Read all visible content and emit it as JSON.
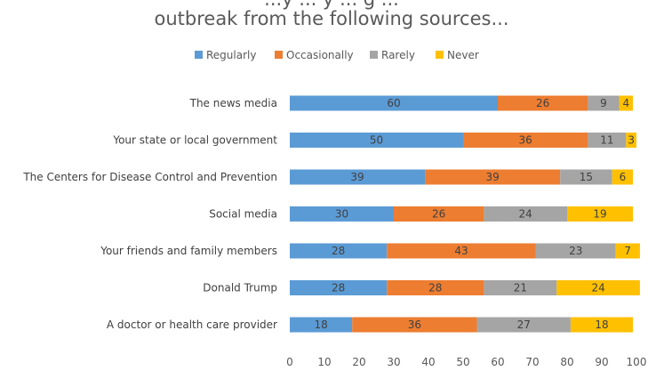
{
  "chart_data": {
    "type": "bar",
    "orientation": "horizontal",
    "stacked": true,
    "title_lines": [
      "...y ... y ... g ...",
      "outbreak from the following sources..."
    ],
    "categories": [
      "The news media",
      "Your state or local government",
      "The Centers for Disease Control and Prevention",
      "Social media",
      "Your friends and family members",
      "Donald Trump",
      "A doctor or health care provider"
    ],
    "series": [
      {
        "name": "Regularly",
        "color": "#5B9BD5",
        "values": [
          60,
          50,
          39,
          30,
          28,
          28,
          18
        ]
      },
      {
        "name": "Occasionally",
        "color": "#ED7D31",
        "values": [
          26,
          36,
          39,
          26,
          43,
          28,
          36
        ]
      },
      {
        "name": "Rarely",
        "color": "#A5A5A5",
        "values": [
          9,
          11,
          15,
          24,
          23,
          21,
          27
        ]
      },
      {
        "name": "Never",
        "color": "#FFC000",
        "values": [
          4,
          3,
          6,
          19,
          7,
          24,
          18
        ]
      }
    ],
    "xlim": [
      0,
      100
    ],
    "xticks": [
      0,
      10,
      20,
      30,
      40,
      50,
      60,
      70,
      80,
      90,
      100
    ],
    "legend_position": "top",
    "grid": false
  }
}
